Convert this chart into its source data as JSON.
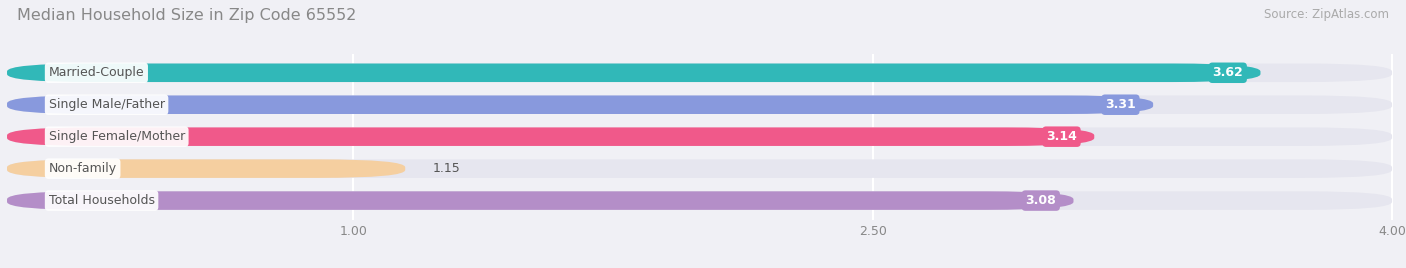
{
  "title": "Median Household Size in Zip Code 65552",
  "source": "Source: ZipAtlas.com",
  "categories": [
    "Married-Couple",
    "Single Male/Father",
    "Single Female/Mother",
    "Non-family",
    "Total Households"
  ],
  "values": [
    3.62,
    3.31,
    3.14,
    1.15,
    3.08
  ],
  "bar_colors": [
    "#31b8b8",
    "#8899dd",
    "#f0598a",
    "#f5cfa0",
    "#b48ec8"
  ],
  "xlim_data": [
    0.0,
    4.0
  ],
  "xmin": 0.0,
  "xmax": 4.0,
  "xticks": [
    1.0,
    2.5,
    4.0
  ],
  "background_color": "#f0f0f5",
  "bar_bg_color": "#e6e6ef",
  "label_bg_color": "#ffffff",
  "label_color": "#555555",
  "value_color": "#ffffff",
  "title_color": "#888888",
  "source_color": "#aaaaaa",
  "bar_height": 0.58,
  "rounding": 0.25
}
